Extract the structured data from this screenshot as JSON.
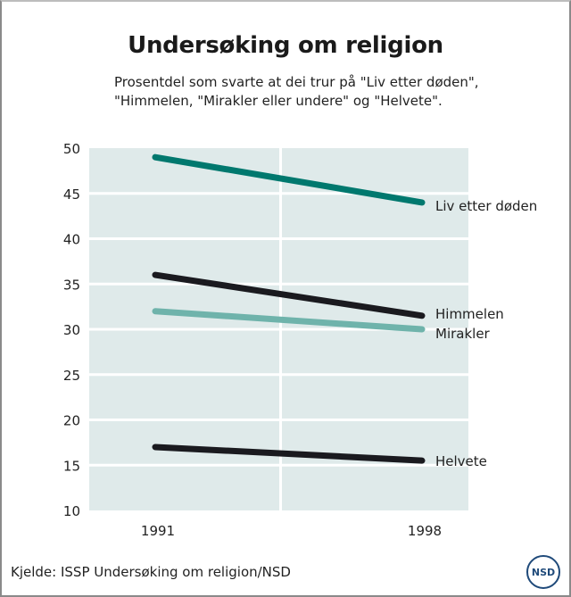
{
  "chart_data": {
    "type": "line",
    "title": "Undersøking om religion",
    "subtitle_lines": [
      "Prosentdel som svarte at dei trur på \"Liv etter døden\",",
      "\"Himmelen, \"Mirakler eller undere\" og \"Helvete\"."
    ],
    "xlabel": "",
    "ylabel": "",
    "categories": [
      "1991",
      "1998"
    ],
    "ylim": [
      10,
      50
    ],
    "yticks": [
      10,
      15,
      20,
      25,
      30,
      35,
      40,
      45,
      50
    ],
    "grid": true,
    "series": [
      {
        "name": "Liv etter døden",
        "values": [
          49,
          44
        ],
        "color": "#00786e"
      },
      {
        "name": "Himmelen",
        "values": [
          36,
          31.5
        ],
        "color": "#1a1a1f"
      },
      {
        "name": "Mirakler",
        "values": [
          32,
          30
        ],
        "color": "#6fb3ab"
      },
      {
        "name": "Helvete",
        "values": [
          17,
          15.5
        ],
        "color": "#1a1a1f"
      }
    ],
    "legend": "inline-right",
    "source": "Kjelde: ISSP Undersøking om religion/NSD",
    "plot_background": "#dfeaea"
  },
  "logo": {
    "text": "NSD",
    "color": "#1f4a7a"
  }
}
